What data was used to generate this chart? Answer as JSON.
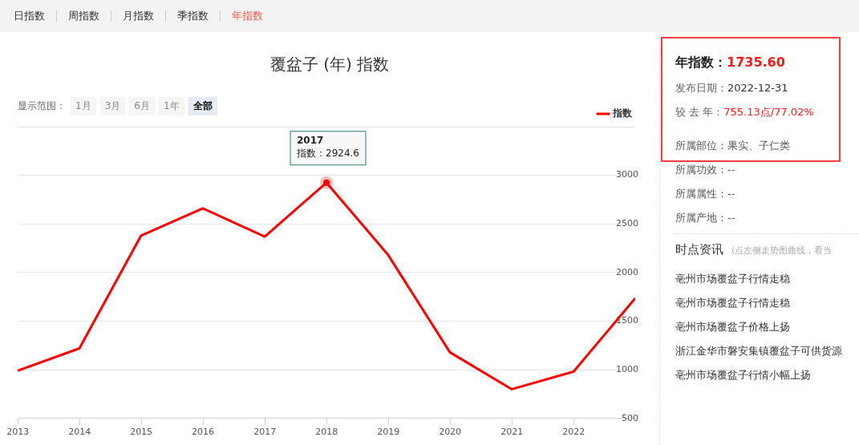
{
  "chart_data": {
    "type": "line",
    "title": "覆盆子 (年) 指数",
    "x": [
      "2012-12-31",
      "2013-12-31",
      "2014-12-31",
      "2015-12-31",
      "2016-12-31",
      "2017-12-31",
      "2018-12-31",
      "2019-12-31",
      "2020-12-31",
      "2021-12-31",
      "2022-12-31"
    ],
    "series": [
      {
        "name": "指数",
        "color": "#ff0000",
        "values": [
          990,
          1220,
          2380,
          2660,
          2370,
          2924.6,
          2180,
          1180,
          800,
          980.5,
          1735.6
        ]
      }
    ],
    "xlim": [
      "2012-12-31",
      "2022-12-31"
    ],
    "xticks": [
      "2013",
      "2014",
      "2015",
      "2016",
      "2017",
      "2018",
      "2019",
      "2020",
      "2021",
      "2022"
    ],
    "ylim": [
      500,
      3500
    ],
    "yticks": [
      500,
      1000,
      1500,
      2000,
      2500,
      3000,
      {
        "value": 3500,
        "label": null
      }
    ],
    "grid": "y",
    "legend": "top right",
    "marker": "none",
    "line_style": "solid",
    "annotations": [
      "日指数",
      "周指数",
      "月指数",
      "季指数",
      "年指数",
      "显示范围：",
      "1月",
      "3月",
      "6月",
      "1年",
      "全部",
      "年指数：1735.60",
      "发布日期：2022-12-31",
      "较 去 年：755.13点/77.02%",
      "所属部位：果实、子仁类",
      "所属功效：--",
      "所属属性：--",
      "所属产地：--",
      "时点资讯",
      "(点左侧走势图曲线，看当",
      "亳州市场覆盆子行情走稳",
      "亳州市场覆盆子行情走稳",
      "亳州市场覆盆子价格上扬",
      "浙江金华市磐安集镇覆盆子可供货源",
      "亳州市场覆盆子行情小幅上扬",
      {
        "text": "2017\n指数：2924.6",
        "x": "2017-12-31",
        "y": 2924.6
      }
    ]
  }
}
